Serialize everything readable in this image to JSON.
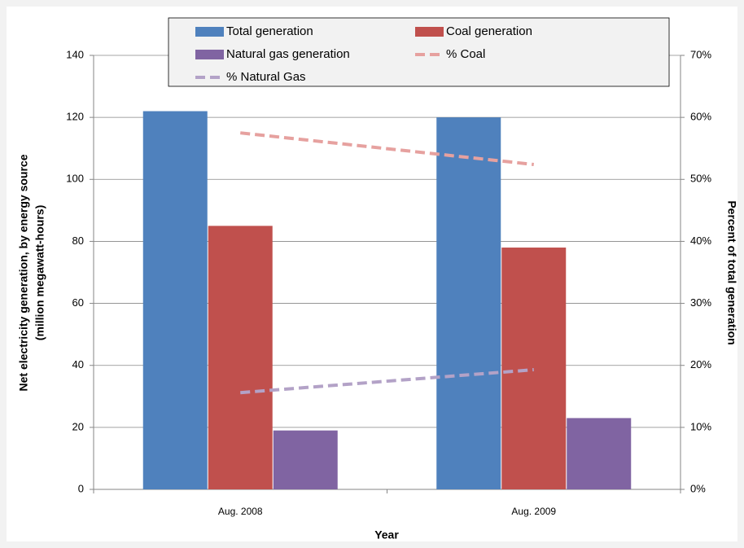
{
  "chart_data": {
    "type": "bar",
    "x_label": "Year",
    "y_label": [
      "Net electricity generation, by energy source",
      "(million megawatt-hours)"
    ],
    "y2_label": "Percent of total generation",
    "categories": [
      "Aug. 2008",
      "Aug. 2009"
    ],
    "series": [
      {
        "name": "Total generation",
        "color": "#4f81bd",
        "type": "bar",
        "values": [
          122,
          120
        ]
      },
      {
        "name": "Coal generation",
        "color": "#c0504d",
        "type": "bar",
        "values": [
          85,
          78
        ]
      },
      {
        "name": "Natural gas generation",
        "color": "#8064a2",
        "type": "bar",
        "values": [
          19,
          23
        ]
      },
      {
        "name": "% Coal",
        "color": "#e6a19f",
        "type": "line",
        "axis": "y2",
        "values": [
          57.5,
          52.4
        ]
      },
      {
        "name": "% Natural Gas",
        "color": "#b3a2c7",
        "type": "line",
        "axis": "y2",
        "values": [
          15.6,
          19.3
        ]
      }
    ],
    "ylim": [
      0,
      140
    ],
    "yticks": [
      0,
      20,
      40,
      60,
      80,
      100,
      120,
      140
    ],
    "y2lim": [
      0,
      70
    ],
    "y2ticks": [
      {
        "value": 0,
        "label": "0%"
      },
      {
        "value": 10,
        "label": "10%"
      },
      {
        "value": 20,
        "label": "20%"
      },
      {
        "value": 30,
        "label": "30%"
      },
      {
        "value": 40,
        "label": "40%"
      },
      {
        "value": 50,
        "label": "50%"
      },
      {
        "value": 60,
        "label": "60%"
      },
      {
        "value": 70,
        "label": "70%"
      }
    ],
    "grid": true
  }
}
